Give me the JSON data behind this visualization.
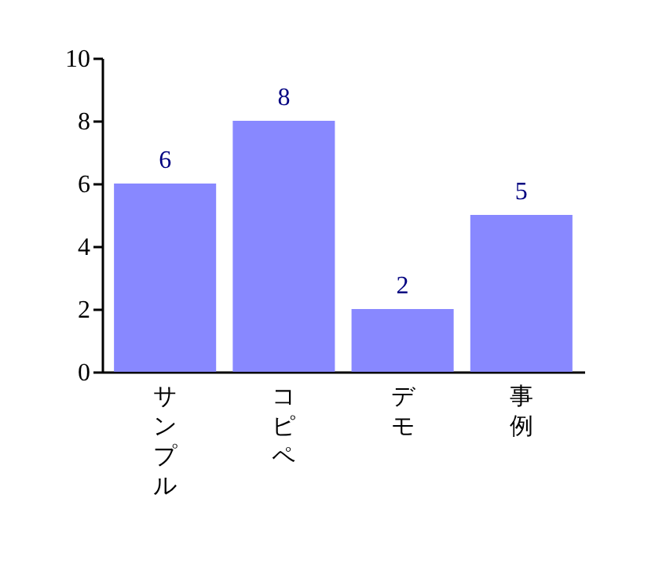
{
  "chart_data": {
    "type": "bar",
    "categories": [
      "サンプル",
      "コピペ",
      "デモ",
      "事例"
    ],
    "values": [
      6,
      8,
      2,
      5
    ],
    "color": "#8888ff",
    "ylim": [
      0,
      10
    ],
    "yticks": [
      0,
      2,
      4,
      6,
      8,
      10
    ],
    "data_labels": true,
    "grid": false
  }
}
